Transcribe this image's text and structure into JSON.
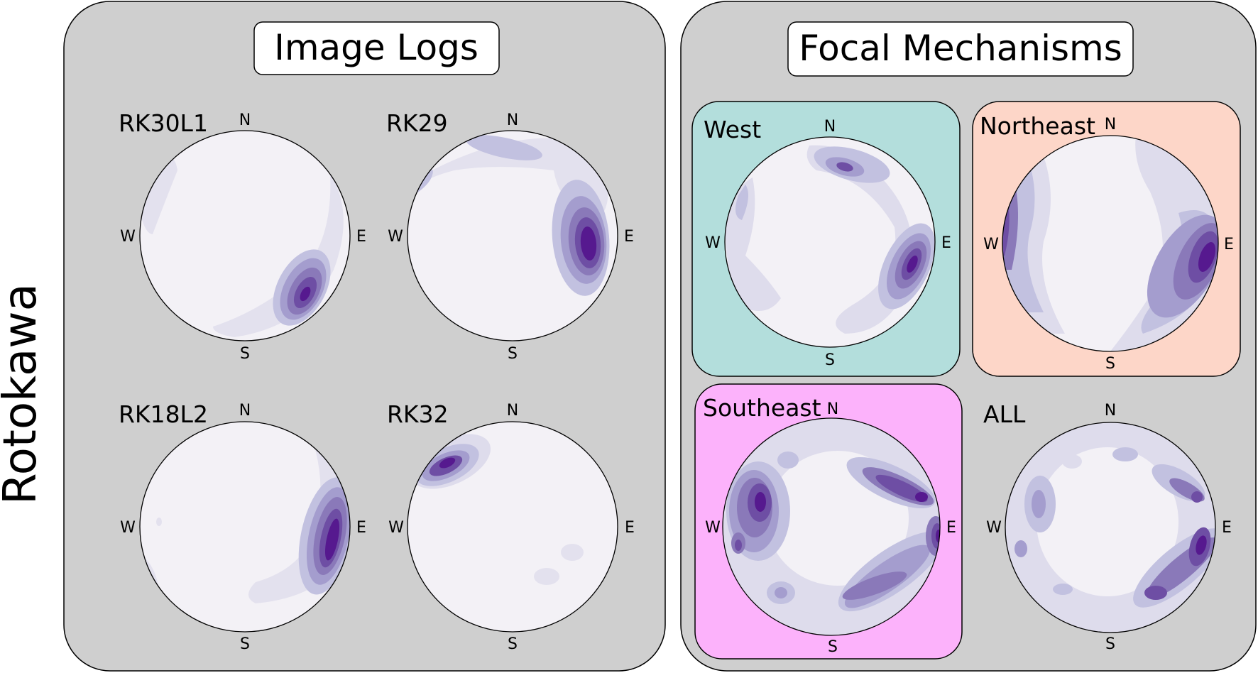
{
  "figure": {
    "side_label": "Rotokawa",
    "groups": {
      "image_logs": {
        "title": "Image Logs",
        "color": "#cfcfcf"
      },
      "focal_mechanisms": {
        "title": "Focal Mechanisms",
        "color": "#cfcfcf"
      }
    },
    "compass": {
      "n": "N",
      "e": "E",
      "s": "S",
      "w": "W"
    },
    "contour_palette": [
      "#f3f1f6",
      "#dedcec",
      "#c2c1e0",
      "#a49dce",
      "#8a79b9",
      "#6e4ea4",
      "#56198f"
    ],
    "stereonets": [
      {
        "id": "rk30l1",
        "title": "RK30L1",
        "group": "image_logs",
        "background": null
      },
      {
        "id": "rk29",
        "title": "RK29",
        "group": "image_logs",
        "background": null
      },
      {
        "id": "rk18l2",
        "title": "RK18L2",
        "group": "image_logs",
        "background": null
      },
      {
        "id": "rk32",
        "title": "RK32",
        "group": "image_logs",
        "background": null
      },
      {
        "id": "west",
        "title": "West",
        "group": "focal_mechanisms",
        "background": "#b3dedc"
      },
      {
        "id": "northeast",
        "title": "Northeast",
        "group": "focal_mechanisms",
        "background": "#fdd6c8"
      },
      {
        "id": "southeast",
        "title": "Southeast",
        "group": "focal_mechanisms",
        "background": "#fcb2fb"
      },
      {
        "id": "all",
        "title": "ALL",
        "group": "focal_mechanisms",
        "background": null
      }
    ]
  }
}
